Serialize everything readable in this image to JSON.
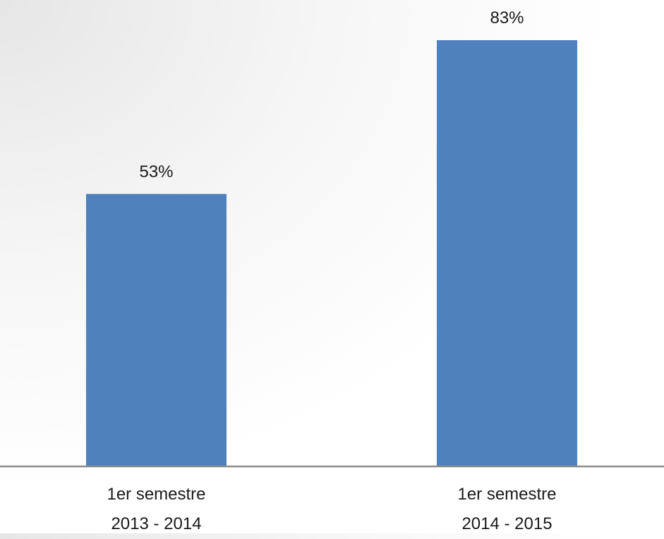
{
  "chart_data": {
    "type": "bar",
    "categories": [
      "1er semestre\n2013 - 2014",
      "1er semestre\n2014 - 2015"
    ],
    "values": [
      53,
      83
    ],
    "value_labels": [
      "53%",
      "83%"
    ],
    "color": "#4f81bd"
  }
}
